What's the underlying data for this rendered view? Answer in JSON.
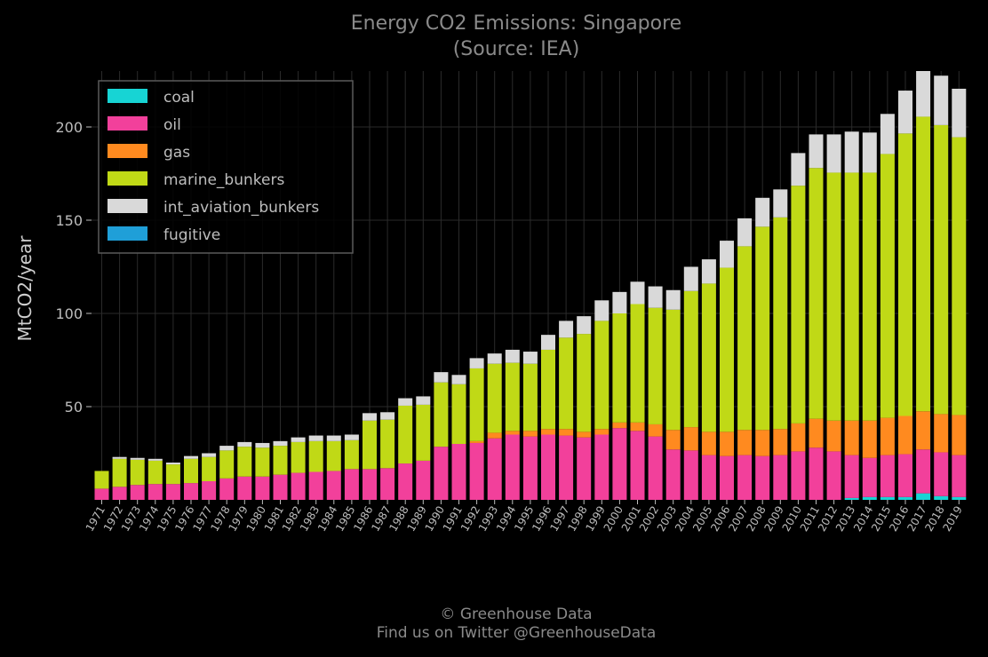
{
  "title": "Energy CO2 Emissions: Singapore",
  "subtitle": "(Source: IEA)",
  "credit_line1": "© Greenhouse Data",
  "credit_line2": "Find us on Twitter @GreenhouseData",
  "chart_data": {
    "type": "bar",
    "stacked": true,
    "ylabel": "MtCO2/year",
    "ylim": [
      0,
      230
    ],
    "yticks": [
      50,
      100,
      150,
      200
    ],
    "grid": true,
    "legend_position": "top-left",
    "categories": [
      "1971",
      "1972",
      "1973",
      "1974",
      "1975",
      "1976",
      "1977",
      "1978",
      "1979",
      "1980",
      "1981",
      "1982",
      "1983",
      "1984",
      "1985",
      "1986",
      "1987",
      "1988",
      "1989",
      "1990",
      "1991",
      "1992",
      "1993",
      "1994",
      "1995",
      "1996",
      "1997",
      "1998",
      "1999",
      "2000",
      "2001",
      "2002",
      "2003",
      "2004",
      "2005",
      "2006",
      "2007",
      "2008",
      "2009",
      "2010",
      "2011",
      "2012",
      "2013",
      "2014",
      "2015",
      "2016",
      "2017",
      "2018",
      "2019"
    ],
    "series": [
      {
        "name": "coal",
        "color": "#17d4d4",
        "values": [
          0,
          0,
          0,
          0,
          0,
          0,
          0,
          0,
          0,
          0,
          0,
          0,
          0,
          0,
          0,
          0,
          0,
          0,
          0,
          0,
          0,
          0,
          0,
          0,
          0,
          0,
          0,
          0,
          0,
          0,
          0,
          0,
          0,
          0,
          0,
          0,
          0,
          0,
          0,
          0,
          0,
          0,
          1,
          1.5,
          1.5,
          1.5,
          3.5,
          2,
          1.5
        ]
      },
      {
        "name": "oil",
        "color": "#f2409b",
        "values": [
          6,
          7,
          8,
          8.5,
          8.5,
          9,
          10,
          11.5,
          12.5,
          12.5,
          13.5,
          14.5,
          15,
          15.5,
          16.5,
          16.5,
          17,
          19.5,
          21,
          28.5,
          30,
          30.5,
          33,
          35,
          34,
          35,
          34.5,
          33.5,
          35,
          38.5,
          37,
          34,
          27,
          26.5,
          24,
          23.5,
          24,
          23.5,
          24,
          26,
          28,
          26,
          23,
          21,
          22.5,
          23,
          23.5,
          23.5,
          22.5
        ]
      },
      {
        "name": "gas",
        "color": "#ff8a1f",
        "values": [
          0,
          0,
          0,
          0,
          0,
          0,
          0,
          0,
          0,
          0,
          0,
          0,
          0,
          0,
          0,
          0,
          0,
          0,
          0,
          0,
          0,
          1,
          3,
          2,
          3,
          3,
          3.5,
          3,
          3,
          3,
          4.5,
          6.5,
          10.5,
          12.5,
          12.5,
          13,
          13.5,
          14,
          14,
          15,
          15.5,
          16.5,
          18.5,
          20,
          20,
          20.5,
          20.5,
          20.5,
          21.5
        ]
      },
      {
        "name": "marine_bunkers",
        "color": "#c0d916",
        "values": [
          9.5,
          15,
          13.5,
          12.5,
          10.5,
          13,
          13,
          15,
          16,
          15.5,
          15.5,
          16.5,
          16.5,
          16,
          15.5,
          26,
          26,
          31,
          30,
          34.5,
          32,
          39,
          37,
          36.5,
          36,
          42.5,
          49,
          52.5,
          58,
          58.5,
          63.5,
          62.5,
          64.5,
          73,
          79.5,
          88,
          98.5,
          109,
          113.5,
          127.5,
          134.5,
          133,
          133,
          133,
          141.5,
          151.5,
          158,
          155,
          149
        ]
      },
      {
        "name": "int_aviation_bunkers",
        "color": "#d9d9d9",
        "values": [
          0,
          1,
          1,
          1,
          1,
          1.5,
          2,
          2.5,
          2.5,
          2.5,
          2.5,
          2.5,
          3,
          3,
          3,
          4,
          4,
          4,
          4.5,
          5.5,
          5,
          5.5,
          5.5,
          7,
          6.5,
          8,
          9,
          9.5,
          11,
          11.5,
          12,
          11.5,
          10.5,
          13,
          13,
          14.5,
          15,
          15.5,
          15,
          17.5,
          18,
          20.5,
          22,
          21.5,
          21.5,
          23,
          24.5,
          26.5,
          26
        ]
      },
      {
        "name": "fugitive",
        "color": "#1f9fd8",
        "values": [
          0,
          0,
          0,
          0,
          0,
          0,
          0,
          0,
          0,
          0,
          0,
          0,
          0,
          0,
          0,
          0,
          0,
          0,
          0,
          0,
          0,
          0,
          0,
          0,
          0,
          0,
          0,
          0,
          0,
          0,
          0,
          0,
          0,
          0,
          0,
          0,
          0,
          0,
          0,
          0,
          0,
          0,
          0,
          0,
          0,
          0,
          0,
          0,
          0
        ]
      }
    ]
  }
}
